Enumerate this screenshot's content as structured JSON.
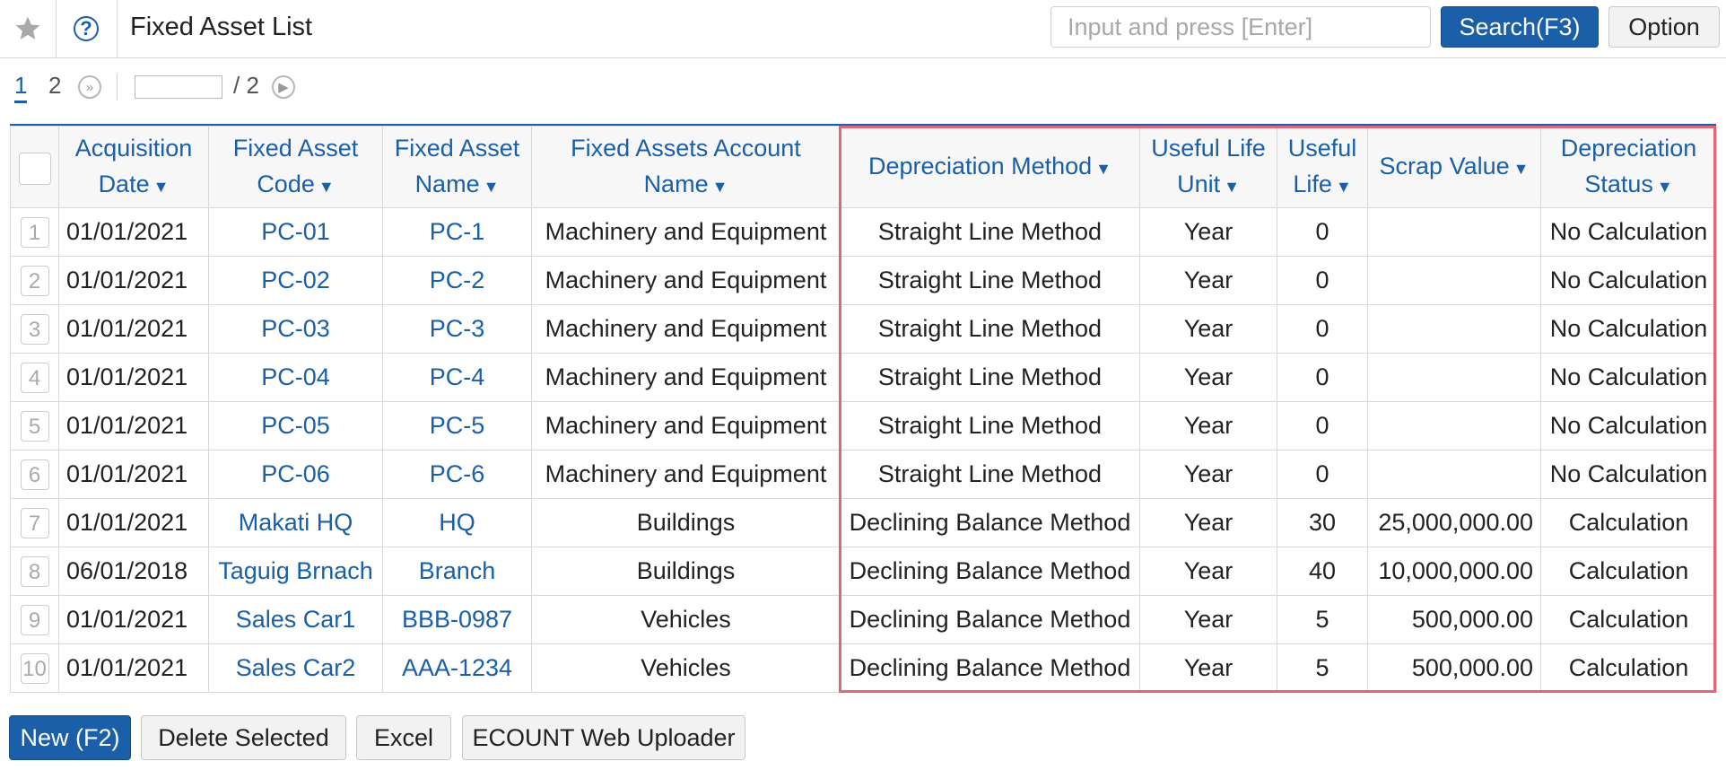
{
  "header": {
    "title": "Fixed Asset List",
    "search_placeholder": "Input and press [Enter]",
    "search_button": "Search(F3)",
    "option_button": "Option"
  },
  "pager": {
    "pages": [
      "1",
      "2"
    ],
    "current_page": "1",
    "total_label": "/ 2"
  },
  "table": {
    "columns": [
      "Acquisition Date",
      "Fixed Asset Code",
      "Fixed Asset Name",
      "Fixed Assets Account Name",
      "Depreciation Method",
      "Useful Life Unit",
      "Useful Life",
      "Scrap Value",
      "Depreciation Status"
    ],
    "rows": [
      {
        "num": "1",
        "date": "01/01/2021",
        "code": "PC-01",
        "name": "PC-1",
        "account": "Machinery and Equipment",
        "method": "Straight Line Method",
        "unit": "Year",
        "life": "0",
        "scrap": "",
        "status": "No Calculation"
      },
      {
        "num": "2",
        "date": "01/01/2021",
        "code": "PC-02",
        "name": "PC-2",
        "account": "Machinery and Equipment",
        "method": "Straight Line Method",
        "unit": "Year",
        "life": "0",
        "scrap": "",
        "status": "No Calculation"
      },
      {
        "num": "3",
        "date": "01/01/2021",
        "code": "PC-03",
        "name": "PC-3",
        "account": "Machinery and Equipment",
        "method": "Straight Line Method",
        "unit": "Year",
        "life": "0",
        "scrap": "",
        "status": "No Calculation"
      },
      {
        "num": "4",
        "date": "01/01/2021",
        "code": "PC-04",
        "name": "PC-4",
        "account": "Machinery and Equipment",
        "method": "Straight Line Method",
        "unit": "Year",
        "life": "0",
        "scrap": "",
        "status": "No Calculation"
      },
      {
        "num": "5",
        "date": "01/01/2021",
        "code": "PC-05",
        "name": "PC-5",
        "account": "Machinery and Equipment",
        "method": "Straight Line Method",
        "unit": "Year",
        "life": "0",
        "scrap": "",
        "status": "No Calculation"
      },
      {
        "num": "6",
        "date": "01/01/2021",
        "code": "PC-06",
        "name": "PC-6",
        "account": "Machinery and Equipment",
        "method": "Straight Line Method",
        "unit": "Year",
        "life": "0",
        "scrap": "",
        "status": "No Calculation"
      },
      {
        "num": "7",
        "date": "01/01/2021",
        "code": "Makati HQ",
        "name": "HQ",
        "account": "Buildings",
        "method": "Declining Balance Method",
        "unit": "Year",
        "life": "30",
        "scrap": "25,000,000.00",
        "status": "Calculation"
      },
      {
        "num": "8",
        "date": "06/01/2018",
        "code": "Taguig Brnach",
        "name": "Branch",
        "account": "Buildings",
        "method": "Declining Balance Method",
        "unit": "Year",
        "life": "40",
        "scrap": "10,000,000.00",
        "status": "Calculation"
      },
      {
        "num": "9",
        "date": "01/01/2021",
        "code": "Sales Car1",
        "name": "BBB-0987",
        "account": "Vehicles",
        "method": "Declining Balance Method",
        "unit": "Year",
        "life": "5",
        "scrap": "500,000.00",
        "status": "Calculation"
      },
      {
        "num": "10",
        "date": "01/01/2021",
        "code": "Sales Car2",
        "name": "AAA-1234",
        "account": "Vehicles",
        "method": "Declining Balance Method",
        "unit": "Year",
        "life": "5",
        "scrap": "500,000.00",
        "status": "Calculation"
      }
    ]
  },
  "footer": {
    "new_button": "New (F2)",
    "delete_button": "Delete Selected",
    "excel_button": "Excel",
    "uploader_button": "ECOUNT Web Uploader"
  },
  "colors": {
    "accent": "#1a5fa8",
    "highlight": "#e06678"
  }
}
